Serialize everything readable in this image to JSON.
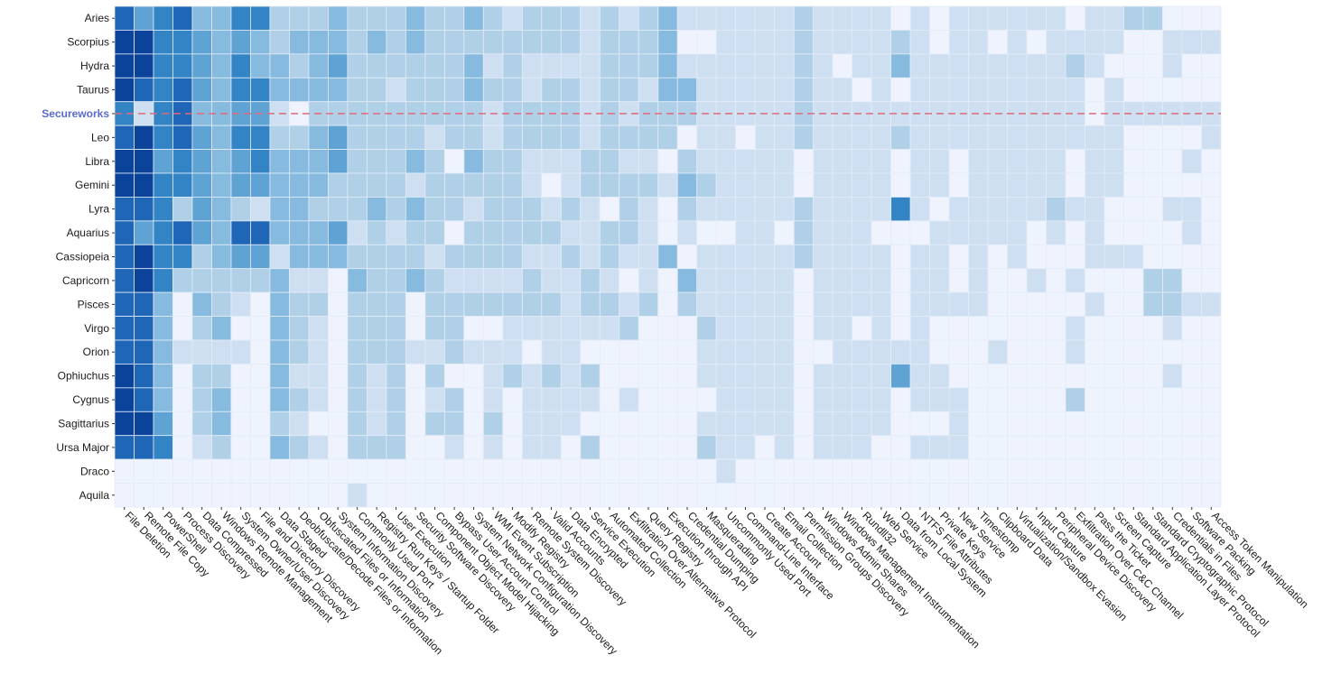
{
  "chart_data": {
    "type": "heatmap",
    "title": "",
    "xlabel": "",
    "ylabel": "",
    "highlight_row": "Secureworks",
    "colors": {
      "background": "#eff3fe",
      "levels": [
        "#eff3fe",
        "#cedff1",
        "#b0d0e8",
        "#86bbdf",
        "#5ea3d4",
        "#3284c5",
        "#2066b6",
        "#0a4399"
      ],
      "highlight_line": "#e06a7a",
      "highlight_label": "#5a6acf"
    },
    "rows": [
      "Aries",
      "Scorpius",
      "Hydra",
      "Taurus",
      "Secureworks",
      "Leo",
      "Libra",
      "Gemini",
      "Lyra",
      "Aquarius",
      "Cassiopeia",
      "Capricorn",
      "Pisces",
      "Virgo",
      "Orion",
      "Ophiuchus",
      "Cygnus",
      "Sagittarius",
      "Ursa Major",
      "Draco",
      "Aquila"
    ],
    "columns": [
      "File Deletion",
      "Remote File Copy",
      "PowerShell",
      "Process Discovery",
      "Data Compressed",
      "Windows Remote Management",
      "System Owner/User Discovery",
      "File and Directory Discovery",
      "Data Staged",
      "Deobfuscate/Decode Files or Information",
      "Obfuscated Files or Information",
      "System Information Discovery",
      "Commonly Used Port",
      "Registry Run Keys / Startup Folder",
      "User Execution",
      "Security Software Discovery",
      "Component Object Model Hijacking",
      "Bypass User Account Control",
      "System Network Configuration Discovery",
      "WMI Event Subscription",
      "Modify Registry",
      "Remote System Discovery",
      "Valid Accounts",
      "Data Encrypted",
      "Service Execution",
      "Automated Collection",
      "Exfiltration Over Alternative Protocol",
      "Query Registry",
      "Execution through API",
      "Credential Dumping",
      "Masquerading",
      "Uncommonly Used Port",
      "Command-Line Interface",
      "Create Account",
      "Email Collection",
      "Permission Groups Discovery",
      "Windows Admin Shares",
      "Windows Management Instrumentation",
      "Rundll32",
      "Web Service",
      "Data from Local System",
      "NTFS File Attributes",
      "Private Keys",
      "New Service",
      "Timestomp",
      "Clipboard Data",
      "Virtualization/Sandbox Evasion",
      "Input Capture",
      "Peripheral Device Discovery",
      "Exfiltration Over C&C Channel",
      "Pass the Ticket",
      "Screen Capture",
      "Standard Application Layer Protocol",
      "Standard Cryptographic Protocol",
      "Credentials in Files",
      "Software Packing",
      "Access Token Manipulation"
    ],
    "values": [
      [
        6,
        4,
        5,
        6,
        3,
        3,
        5,
        5,
        2,
        2,
        2,
        3,
        2,
        2,
        2,
        3,
        2,
        2,
        3,
        2,
        1,
        2,
        2,
        2,
        1,
        2,
        1,
        2,
        3,
        1,
        1,
        1,
        1,
        1,
        1,
        2,
        1,
        1,
        1,
        1,
        0,
        1,
        0,
        1,
        1,
        1,
        1,
        1,
        1,
        0,
        1,
        1,
        2,
        2,
        0,
        0,
        0
      ],
      [
        7,
        7,
        5,
        5,
        4,
        3,
        4,
        3,
        2,
        3,
        3,
        3,
        2,
        3,
        2,
        3,
        2,
        2,
        2,
        2,
        2,
        2,
        2,
        2,
        1,
        2,
        2,
        2,
        3,
        0,
        0,
        1,
        1,
        1,
        1,
        2,
        1,
        1,
        1,
        1,
        2,
        1,
        0,
        1,
        1,
        0,
        1,
        0,
        1,
        1,
        1,
        1,
        0,
        0,
        1,
        1,
        1
      ],
      [
        7,
        7,
        5,
        5,
        4,
        3,
        5,
        3,
        3,
        2,
        3,
        4,
        2,
        2,
        2,
        2,
        2,
        2,
        3,
        1,
        2,
        1,
        1,
        1,
        1,
        2,
        2,
        2,
        3,
        1,
        1,
        1,
        1,
        1,
        1,
        2,
        1,
        0,
        1,
        1,
        3,
        1,
        1,
        1,
        1,
        1,
        1,
        1,
        1,
        2,
        1,
        0,
        0,
        0,
        1,
        0,
        0
      ],
      [
        7,
        6,
        5,
        6,
        4,
        3,
        5,
        5,
        3,
        3,
        3,
        3,
        2,
        2,
        1,
        2,
        2,
        2,
        3,
        2,
        2,
        1,
        2,
        2,
        1,
        2,
        2,
        1,
        3,
        3,
        1,
        1,
        1,
        1,
        1,
        2,
        1,
        1,
        0,
        1,
        0,
        1,
        1,
        1,
        1,
        1,
        1,
        1,
        1,
        1,
        0,
        1,
        0,
        0,
        0,
        0,
        0
      ],
      [
        5,
        1,
        5,
        6,
        3,
        3,
        4,
        4,
        1,
        0,
        2,
        2,
        2,
        2,
        2,
        2,
        2,
        2,
        2,
        1,
        2,
        2,
        2,
        2,
        1,
        2,
        1,
        2,
        2,
        2,
        1,
        1,
        1,
        1,
        1,
        2,
        1,
        1,
        1,
        1,
        1,
        1,
        1,
        1,
        1,
        1,
        1,
        1,
        1,
        1,
        0,
        1,
        1,
        1,
        1,
        1,
        1
      ],
      [
        6,
        7,
        5,
        6,
        4,
        3,
        5,
        5,
        2,
        2,
        3,
        4,
        2,
        2,
        2,
        2,
        1,
        2,
        2,
        1,
        2,
        2,
        2,
        2,
        1,
        2,
        2,
        2,
        2,
        0,
        1,
        1,
        0,
        1,
        1,
        2,
        1,
        1,
        1,
        1,
        2,
        1,
        1,
        1,
        1,
        1,
        1,
        1,
        1,
        1,
        1,
        1,
        0,
        0,
        0,
        0,
        1
      ],
      [
        7,
        7,
        4,
        5,
        4,
        3,
        4,
        5,
        3,
        3,
        3,
        4,
        2,
        2,
        2,
        3,
        2,
        0,
        3,
        2,
        2,
        1,
        1,
        1,
        2,
        2,
        1,
        1,
        0,
        2,
        1,
        1,
        1,
        1,
        1,
        0,
        1,
        1,
        1,
        1,
        0,
        1,
        1,
        0,
        1,
        1,
        1,
        1,
        1,
        0,
        1,
        1,
        0,
        0,
        0,
        1,
        0
      ],
      [
        7,
        7,
        5,
        5,
        4,
        3,
        4,
        4,
        3,
        3,
        3,
        2,
        2,
        2,
        2,
        1,
        2,
        2,
        2,
        2,
        2,
        1,
        0,
        1,
        2,
        2,
        2,
        2,
        1,
        3,
        2,
        1,
        1,
        1,
        1,
        0,
        1,
        1,
        1,
        1,
        0,
        1,
        1,
        0,
        1,
        1,
        1,
        1,
        1,
        0,
        1,
        1,
        0,
        0,
        0,
        0,
        0
      ],
      [
        6,
        6,
        5,
        2,
        4,
        3,
        2,
        1,
        3,
        3,
        2,
        2,
        2,
        3,
        2,
        3,
        2,
        2,
        1,
        2,
        2,
        2,
        1,
        2,
        1,
        0,
        2,
        1,
        0,
        2,
        1,
        1,
        1,
        1,
        1,
        2,
        1,
        1,
        1,
        1,
        5,
        1,
        0,
        1,
        1,
        1,
        1,
        1,
        2,
        1,
        1,
        0,
        0,
        0,
        1,
        1,
        0
      ],
      [
        6,
        4,
        5,
        6,
        4,
        3,
        6,
        6,
        3,
        3,
        3,
        4,
        1,
        2,
        1,
        2,
        2,
        0,
        2,
        2,
        2,
        2,
        2,
        1,
        1,
        2,
        2,
        1,
        0,
        1,
        0,
        0,
        1,
        1,
        0,
        2,
        1,
        1,
        1,
        0,
        0,
        0,
        1,
        1,
        1,
        1,
        1,
        0,
        1,
        0,
        1,
        0,
        0,
        0,
        0,
        1,
        0
      ],
      [
        6,
        7,
        5,
        5,
        2,
        3,
        4,
        4,
        1,
        3,
        3,
        3,
        2,
        2,
        2,
        2,
        1,
        2,
        2,
        2,
        2,
        1,
        1,
        2,
        1,
        2,
        1,
        1,
        3,
        0,
        1,
        1,
        1,
        1,
        1,
        2,
        1,
        1,
        1,
        1,
        0,
        1,
        1,
        0,
        1,
        0,
        1,
        0,
        0,
        0,
        1,
        1,
        1,
        0,
        0,
        0,
        0
      ],
      [
        6,
        7,
        5,
        2,
        2,
        2,
        2,
        2,
        3,
        1,
        1,
        0,
        3,
        2,
        2,
        3,
        2,
        1,
        1,
        1,
        1,
        2,
        1,
        1,
        2,
        1,
        0,
        1,
        0,
        3,
        1,
        1,
        1,
        1,
        1,
        0,
        1,
        1,
        1,
        1,
        0,
        1,
        1,
        0,
        1,
        0,
        0,
        1,
        0,
        1,
        0,
        0,
        0,
        2,
        2,
        0,
        0
      ],
      [
        6,
        6,
        3,
        0,
        3,
        2,
        1,
        0,
        3,
        2,
        2,
        0,
        2,
        2,
        2,
        0,
        2,
        2,
        2,
        2,
        2,
        2,
        2,
        1,
        2,
        2,
        1,
        2,
        0,
        2,
        1,
        1,
        1,
        1,
        1,
        0,
        1,
        1,
        1,
        1,
        0,
        1,
        1,
        1,
        1,
        0,
        0,
        0,
        0,
        0,
        1,
        0,
        0,
        2,
        2,
        1,
        1
      ],
      [
        6,
        6,
        3,
        0,
        2,
        3,
        0,
        0,
        3,
        2,
        1,
        0,
        2,
        2,
        2,
        0,
        2,
        2,
        0,
        0,
        1,
        1,
        1,
        1,
        1,
        1,
        2,
        0,
        0,
        0,
        2,
        1,
        1,
        1,
        1,
        0,
        1,
        1,
        0,
        1,
        0,
        1,
        0,
        0,
        0,
        0,
        0,
        0,
        0,
        1,
        0,
        0,
        0,
        0,
        1,
        0,
        0
      ],
      [
        6,
        6,
        3,
        1,
        1,
        1,
        1,
        0,
        3,
        2,
        1,
        0,
        2,
        2,
        2,
        1,
        1,
        2,
        1,
        1,
        1,
        0,
        1,
        1,
        0,
        0,
        0,
        0,
        0,
        0,
        1,
        1,
        1,
        1,
        1,
        0,
        0,
        1,
        1,
        1,
        1,
        1,
        0,
        0,
        0,
        1,
        0,
        0,
        0,
        1,
        0,
        0,
        0,
        0,
        0,
        0,
        0
      ],
      [
        7,
        6,
        3,
        0,
        2,
        2,
        0,
        0,
        3,
        1,
        1,
        0,
        2,
        1,
        2,
        0,
        2,
        0,
        0,
        1,
        2,
        1,
        2,
        1,
        2,
        0,
        0,
        0,
        0,
        0,
        1,
        1,
        1,
        1,
        1,
        0,
        1,
        1,
        1,
        1,
        4,
        1,
        1,
        0,
        0,
        0,
        0,
        0,
        0,
        0,
        0,
        0,
        0,
        0,
        1,
        0,
        0
      ],
      [
        7,
        6,
        3,
        0,
        2,
        3,
        0,
        0,
        3,
        2,
        1,
        0,
        2,
        1,
        2,
        0,
        1,
        2,
        0,
        1,
        0,
        1,
        1,
        1,
        1,
        0,
        1,
        0,
        0,
        0,
        0,
        1,
        1,
        1,
        1,
        0,
        1,
        1,
        1,
        1,
        0,
        1,
        1,
        1,
        0,
        0,
        0,
        0,
        0,
        2,
        0,
        0,
        0,
        0,
        0,
        0,
        0
      ],
      [
        7,
        7,
        4,
        0,
        2,
        3,
        0,
        0,
        2,
        1,
        0,
        0,
        2,
        1,
        2,
        0,
        2,
        2,
        0,
        2,
        0,
        1,
        1,
        1,
        0,
        0,
        0,
        0,
        0,
        0,
        1,
        1,
        1,
        1,
        1,
        0,
        1,
        1,
        1,
        1,
        0,
        0,
        0,
        1,
        0,
        0,
        0,
        0,
        0,
        0,
        0,
        0,
        0,
        0,
        0,
        0,
        0
      ],
      [
        6,
        6,
        5,
        0,
        1,
        2,
        0,
        0,
        3,
        2,
        1,
        0,
        2,
        2,
        2,
        0,
        0,
        1,
        0,
        1,
        0,
        1,
        1,
        0,
        2,
        0,
        0,
        0,
        0,
        0,
        2,
        1,
        1,
        0,
        1,
        0,
        1,
        1,
        1,
        0,
        0,
        1,
        1,
        1,
        0,
        0,
        0,
        0,
        0,
        0,
        0,
        0,
        0,
        0,
        0,
        0,
        0
      ],
      [
        0,
        0,
        0,
        0,
        0,
        0,
        0,
        0,
        0,
        0,
        0,
        0,
        0,
        0,
        0,
        0,
        0,
        0,
        0,
        0,
        0,
        0,
        0,
        0,
        0,
        0,
        0,
        0,
        0,
        0,
        0,
        1,
        0,
        0,
        0,
        0,
        0,
        0,
        0,
        0,
        0,
        0,
        0,
        0,
        0,
        0,
        0,
        0,
        0,
        0,
        0,
        0,
        0,
        0,
        0,
        0,
        0
      ],
      [
        0,
        0,
        0,
        0,
        0,
        0,
        0,
        0,
        0,
        0,
        0,
        0,
        1,
        0,
        0,
        0,
        0,
        0,
        0,
        0,
        0,
        0,
        0,
        0,
        0,
        0,
        0,
        0,
        0,
        0,
        0,
        0,
        0,
        0,
        0,
        0,
        0,
        0,
        0,
        0,
        0,
        0,
        0,
        0,
        0,
        0,
        0,
        0,
        0,
        0,
        0,
        0,
        0,
        0,
        0,
        0,
        0
      ]
    ]
  }
}
